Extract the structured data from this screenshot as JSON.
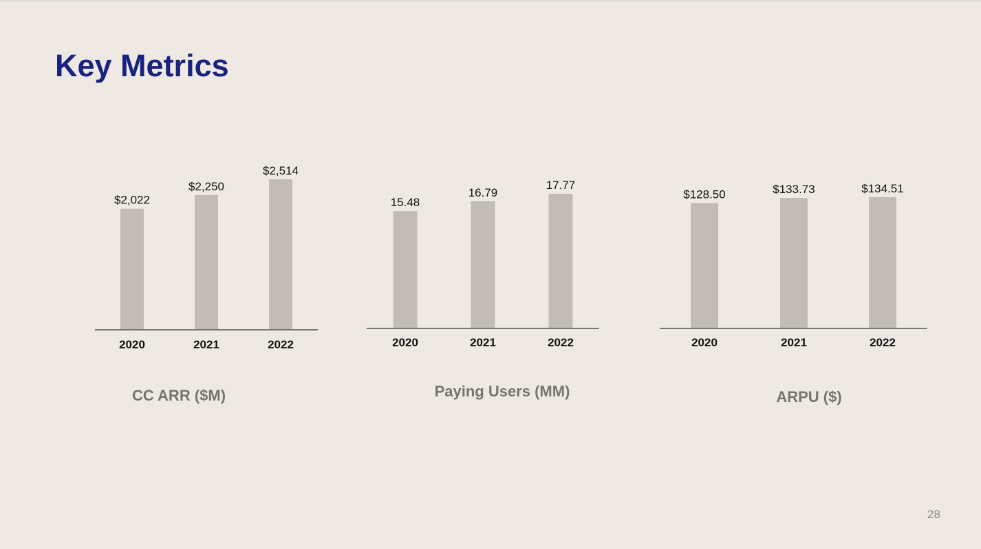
{
  "slide": {
    "title": "Key Metrics",
    "page_number": "28"
  },
  "colors": {
    "background": "#eeeae3",
    "title": "#19237f",
    "bar": "#c1bcb6",
    "axis": "#7a7672",
    "caption": "#777470"
  },
  "chart_data": [
    {
      "type": "bar",
      "title": "CC ARR ($M)",
      "categories": [
        "2020",
        "2021",
        "2022"
      ],
      "values": [
        2022,
        2250,
        2514
      ],
      "value_labels": [
        "$2,022",
        "$2,250",
        "$2,514"
      ],
      "xlabel": "",
      "ylabel": "",
      "grid": false
    },
    {
      "type": "bar",
      "title": "Paying Users (MM)",
      "categories": [
        "2020",
        "2021",
        "2022"
      ],
      "values": [
        15.48,
        16.79,
        17.77
      ],
      "value_labels": [
        "15.48",
        "16.79",
        "17.77"
      ],
      "xlabel": "",
      "ylabel": "",
      "grid": false
    },
    {
      "type": "bar",
      "title": "ARPU ($)",
      "categories": [
        "2020",
        "2021",
        "2022"
      ],
      "values": [
        128.5,
        133.73,
        134.51
      ],
      "value_labels": [
        "$128.50",
        "$133.73",
        "$134.51"
      ],
      "xlabel": "",
      "ylabel": "",
      "grid": false
    }
  ]
}
